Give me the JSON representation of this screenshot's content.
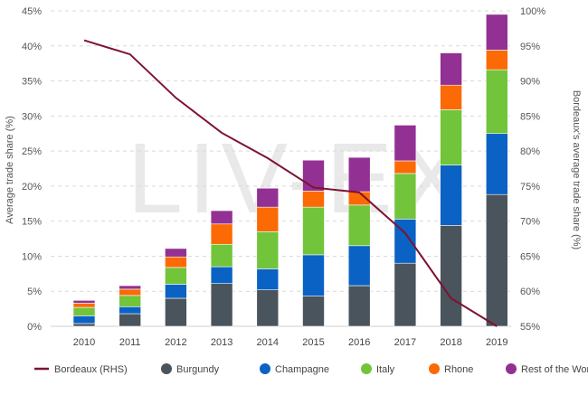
{
  "chart_data": {
    "type": "bar",
    "stacked": true,
    "categories": [
      "2010",
      "2011",
      "2012",
      "2013",
      "2014",
      "2015",
      "2016",
      "2017",
      "2018",
      "2019"
    ],
    "ylabel": "Average trade share (%)",
    "ylabel_right": "Bordeaux's average trade share (%)",
    "ylim": [
      0,
      45
    ],
    "yticks": [
      "0%",
      "5%",
      "10%",
      "15%",
      "20%",
      "25%",
      "30%",
      "35%",
      "40%",
      "45%"
    ],
    "ylim_right": [
      55,
      100
    ],
    "yticks_right": [
      "55%",
      "60%",
      "65%",
      "70%",
      "75%",
      "80%",
      "85%",
      "90%",
      "95%",
      "100%"
    ],
    "grid": true,
    "legend_position": "bottom",
    "watermark": "LIV-EX",
    "series": [
      {
        "name": "Burgundy",
        "color": "#4a545c",
        "values": [
          0.4,
          1.8,
          4.0,
          6.1,
          5.2,
          4.3,
          5.8,
          9.0,
          14.4,
          18.8
        ]
      },
      {
        "name": "Champagne",
        "color": "#0a62c4",
        "values": [
          1.1,
          1.0,
          2.0,
          2.4,
          3.0,
          5.9,
          5.7,
          6.3,
          8.6,
          8.7
        ]
      },
      {
        "name": "Italy",
        "color": "#72c43a",
        "values": [
          1.2,
          1.6,
          2.4,
          3.2,
          5.3,
          6.8,
          5.8,
          6.5,
          7.9,
          9.1
        ]
      },
      {
        "name": "Rhone",
        "color": "#fb6a05",
        "values": [
          0.6,
          0.9,
          1.5,
          2.9,
          3.5,
          2.3,
          1.9,
          1.8,
          3.5,
          2.8
        ]
      },
      {
        "name": "Rest of the World",
        "color": "#933093",
        "values": [
          0.4,
          0.5,
          1.2,
          1.9,
          2.7,
          4.4,
          4.9,
          5.1,
          4.6,
          5.1
        ]
      }
    ],
    "line_series": {
      "name": "Bordeaux (RHS)",
      "color": "#7d1232",
      "axis": "right",
      "values": [
        95.8,
        93.8,
        87.6,
        82.6,
        79.0,
        74.8,
        74.1,
        68.3,
        59.0,
        55.0
      ]
    }
  }
}
